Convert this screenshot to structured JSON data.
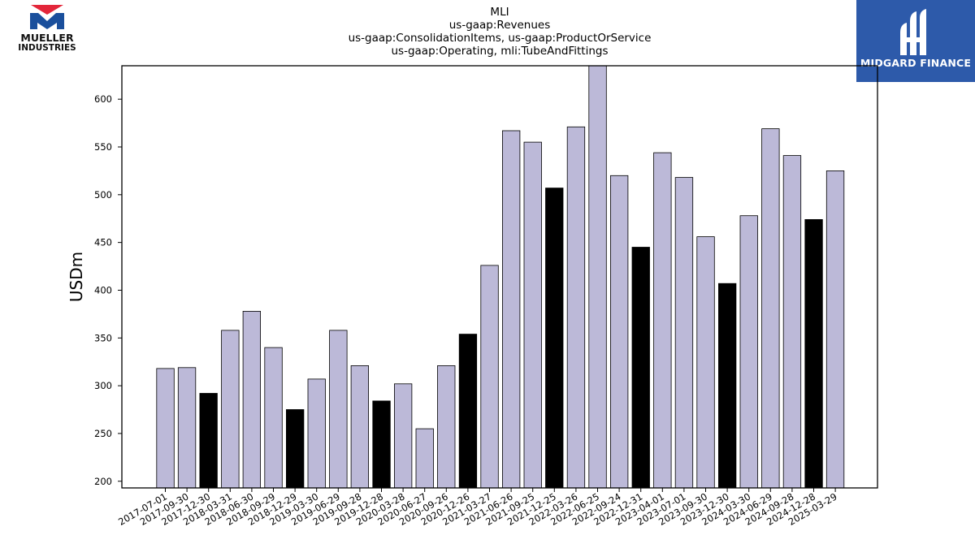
{
  "header": {
    "title_lines": [
      "MLI",
      "us-gaap:Revenues",
      "us-gaap:ConsolidationItems, us-gaap:ProductOrService",
      "us-gaap:Operating, mli:TubeAndFittings"
    ]
  },
  "logos": {
    "left": {
      "line1": "MUELLER",
      "line2": "INDUSTRIES"
    },
    "right": {
      "text": "MIDGARD FINANCE",
      "color": "#2d5aaa"
    }
  },
  "chart_data": {
    "type": "bar",
    "ylabel": "USDm",
    "xlabel": "",
    "ylim": [
      193,
      635
    ],
    "yticks": [
      200,
      250,
      300,
      350,
      400,
      450,
      500,
      550,
      600
    ],
    "grid": false,
    "colors": {
      "quarter": "#bcb9d8",
      "fiscal_year": "#000000",
      "edge": "#000000"
    },
    "categories": [
      "2017-07-01",
      "2017-09-30",
      "2017-12-30",
      "2018-03-31",
      "2018-06-30",
      "2018-09-29",
      "2018-12-29",
      "2019-03-30",
      "2019-06-29",
      "2019-09-28",
      "2019-12-28",
      "2020-03-28",
      "2020-06-27",
      "2020-09-26",
      "2020-12-26",
      "2021-03-27",
      "2021-06-26",
      "2021-09-25",
      "2021-12-25",
      "2022-03-26",
      "2022-06-25",
      "2022-09-24",
      "2022-12-31",
      "2023-04-01",
      "2023-07-01",
      "2023-09-30",
      "2023-12-30",
      "2024-03-30",
      "2024-06-29",
      "2024-09-28",
      "2024-12-28",
      "2025-03-29"
    ],
    "values": [
      318,
      319,
      292,
      358,
      378,
      340,
      275,
      307,
      358,
      321,
      284,
      302,
      255,
      321,
      354,
      426,
      567,
      555,
      507,
      571,
      637,
      520,
      445,
      544,
      518,
      456,
      407,
      478,
      569,
      541,
      474,
      525
    ],
    "highlight": [
      false,
      false,
      true,
      false,
      false,
      false,
      true,
      false,
      false,
      false,
      true,
      false,
      false,
      false,
      true,
      false,
      false,
      false,
      true,
      false,
      false,
      false,
      true,
      false,
      false,
      false,
      true,
      false,
      false,
      false,
      true,
      false
    ]
  }
}
